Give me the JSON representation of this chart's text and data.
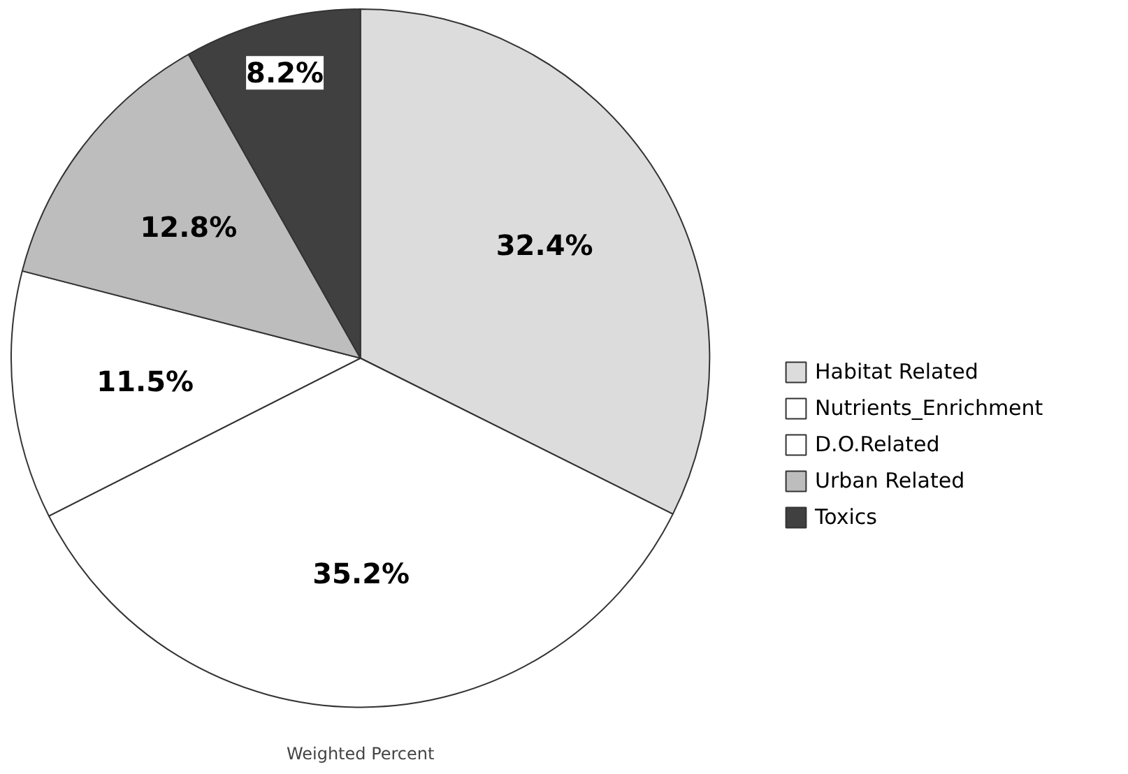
{
  "chart_data": {
    "type": "pie",
    "xlabel": "Weighted Percent",
    "categories": [
      "Habitat Related",
      "Nutrients_Enrichment",
      "D.O.Related",
      "Urban Related",
      "Toxics"
    ],
    "values": [
      32.4,
      35.2,
      11.5,
      12.8,
      8.2
    ],
    "colors": [
      "#dcdcdc",
      "#ffffff",
      "#ffffff",
      "#bdbdbd",
      "#404040"
    ],
    "value_labels": [
      "32.4%",
      "35.2%",
      "11.5%",
      "12.8%",
      "8.2%"
    ],
    "legend": "right"
  }
}
